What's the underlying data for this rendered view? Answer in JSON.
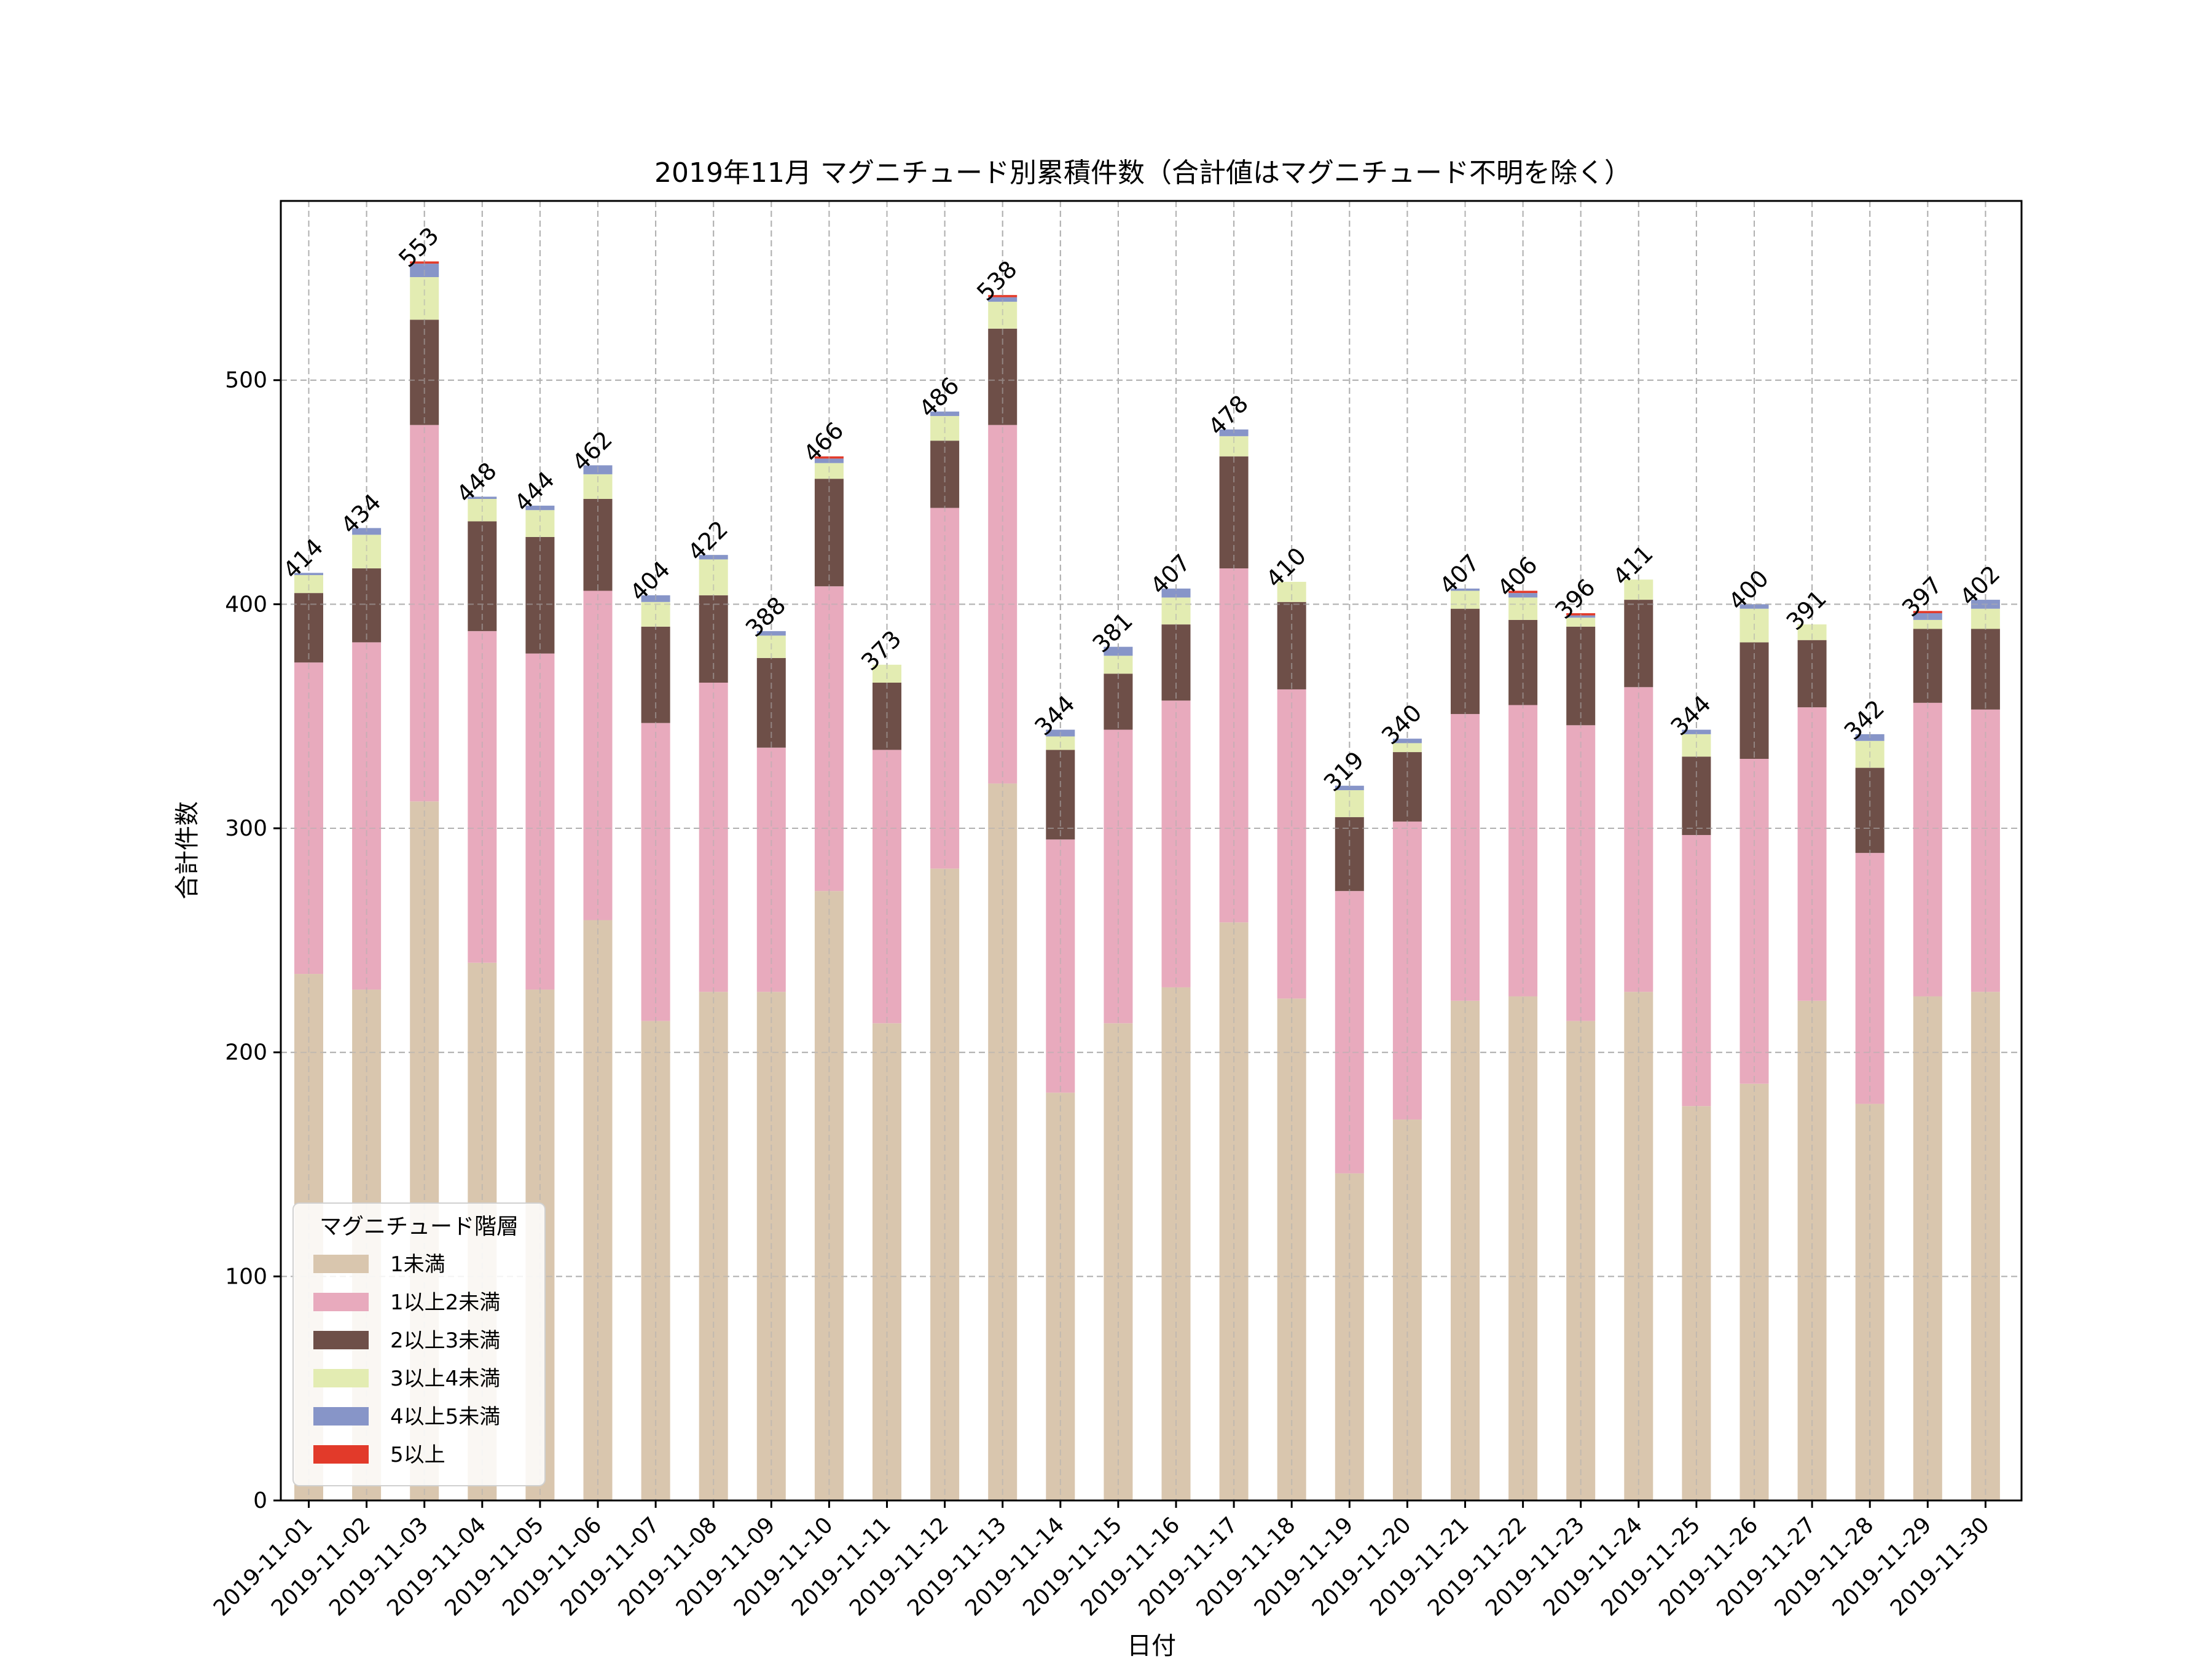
{
  "chart_data": {
    "type": "bar",
    "stacked": true,
    "title": "2019年11月 マグニチュード別累積件数（合計値はマグニチュード不明を除く）",
    "xlabel": "日付",
    "ylabel": "合計件数",
    "ylim": [
      0,
      580
    ],
    "yticks": [
      0,
      100,
      200,
      300,
      400,
      500
    ],
    "grid": true,
    "legend_title": "マグニチュード階層",
    "legend_position": "lower-left",
    "categories": [
      "2019-11-01",
      "2019-11-02",
      "2019-11-03",
      "2019-11-04",
      "2019-11-05",
      "2019-11-06",
      "2019-11-07",
      "2019-11-08",
      "2019-11-09",
      "2019-11-10",
      "2019-11-11",
      "2019-11-12",
      "2019-11-13",
      "2019-11-14",
      "2019-11-15",
      "2019-11-16",
      "2019-11-17",
      "2019-11-18",
      "2019-11-19",
      "2019-11-20",
      "2019-11-21",
      "2019-11-22",
      "2019-11-23",
      "2019-11-24",
      "2019-11-25",
      "2019-11-26",
      "2019-11-27",
      "2019-11-28",
      "2019-11-29",
      "2019-11-30"
    ],
    "series": [
      {
        "name": "1未満",
        "color": "#d9c6ae",
        "values": [
          235,
          228,
          312,
          240,
          228,
          259,
          214,
          227,
          227,
          272,
          213,
          282,
          320,
          182,
          213,
          229,
          258,
          224,
          146,
          170,
          223,
          225,
          214,
          227,
          176,
          186,
          223,
          177,
          225,
          227
        ]
      },
      {
        "name": "1以上2未満",
        "color": "#e8aabd",
        "values": [
          139,
          155,
          168,
          148,
          150,
          147,
          133,
          138,
          109,
          136,
          122,
          161,
          160,
          113,
          131,
          128,
          158,
          138,
          126,
          133,
          128,
          130,
          132,
          136,
          121,
          145,
          131,
          112,
          131,
          126
        ]
      },
      {
        "name": "2以上3未満",
        "color": "#6e4f48",
        "values": [
          31,
          33,
          47,
          49,
          52,
          41,
          43,
          39,
          40,
          48,
          30,
          30,
          43,
          40,
          25,
          34,
          50,
          39,
          33,
          31,
          47,
          38,
          44,
          39,
          35,
          52,
          30,
          38,
          33,
          36
        ]
      },
      {
        "name": "3以上4未満",
        "color": "#e3ecb2",
        "values": [
          8,
          15,
          19,
          10,
          12,
          11,
          11,
          16,
          10,
          7,
          8,
          11,
          12,
          6,
          8,
          12,
          9,
          9,
          12,
          4,
          8,
          10,
          4,
          9,
          10,
          15,
          7,
          12,
          4,
          9
        ]
      },
      {
        "name": "4以上5未満",
        "color": "#8795c8",
        "values": [
          1,
          3,
          6,
          1,
          2,
          4,
          3,
          2,
          2,
          2,
          0,
          2,
          2,
          3,
          4,
          4,
          3,
          0,
          2,
          2,
          1,
          2,
          1,
          0,
          2,
          2,
          0,
          3,
          3,
          4
        ]
      },
      {
        "name": "5以上",
        "color": "#e23a2a",
        "values": [
          0,
          0,
          1,
          0,
          0,
          0,
          0,
          0,
          0,
          1,
          0,
          0,
          1,
          0,
          0,
          0,
          0,
          0,
          0,
          0,
          0,
          1,
          1,
          0,
          0,
          0,
          0,
          0,
          1,
          0
        ]
      }
    ],
    "totals": [
      414,
      434,
      553,
      448,
      444,
      462,
      404,
      422,
      388,
      466,
      373,
      486,
      538,
      344,
      381,
      407,
      478,
      410,
      319,
      340,
      407,
      406,
      396,
      411,
      344,
      400,
      391,
      342,
      397,
      402
    ]
  }
}
